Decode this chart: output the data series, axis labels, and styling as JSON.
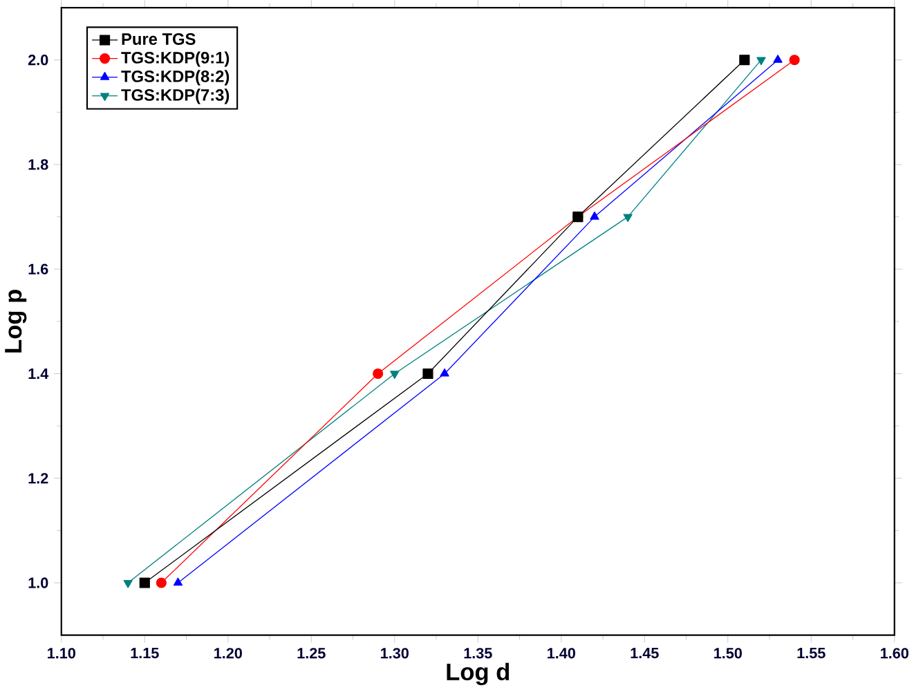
{
  "chart_data": {
    "type": "line",
    "xlabel": "Log d",
    "ylabel": "Log p",
    "xlim": [
      1.1,
      1.6
    ],
    "ylim": [
      0.9,
      2.1
    ],
    "xticks": [
      {
        "value": 1.1,
        "label": "1.10"
      },
      {
        "value": 1.15,
        "label": "1.15"
      },
      {
        "value": 1.2,
        "label": "1.20"
      },
      {
        "value": 1.25,
        "label": "1.25"
      },
      {
        "value": 1.3,
        "label": "1.30"
      },
      {
        "value": 1.35,
        "label": "1.35"
      },
      {
        "value": 1.4,
        "label": "1.40"
      },
      {
        "value": 1.45,
        "label": "1.45"
      },
      {
        "value": 1.5,
        "label": "1.50"
      },
      {
        "value": 1.55,
        "label": "1.55"
      },
      {
        "value": 1.6,
        "label": "1.60"
      }
    ],
    "yticks": [
      {
        "value": 1.0,
        "label": "1.0"
      },
      {
        "value": 1.2,
        "label": "1.2"
      },
      {
        "value": 1.4,
        "label": "1.4"
      },
      {
        "value": 1.6,
        "label": "1.6"
      },
      {
        "value": 1.8,
        "label": "1.8"
      },
      {
        "value": 2.0,
        "label": "2.0"
      }
    ],
    "legend": "top left",
    "grid": false,
    "series": [
      {
        "name": "Pure TGS",
        "color": "#000000",
        "marker": "square",
        "x": [
          1.15,
          1.32,
          1.41,
          1.51
        ],
        "values": [
          1.0,
          1.4,
          1.7,
          2.0
        ]
      },
      {
        "name": "TGS:KDP(9:1)",
        "color": "#ff0000",
        "marker": "circle",
        "x": [
          1.16,
          1.29,
          1.41,
          1.54
        ],
        "values": [
          1.0,
          1.4,
          1.7,
          2.0
        ]
      },
      {
        "name": "TGS:KDP(8:2)",
        "color": "#0000ff",
        "marker": "triangle",
        "x": [
          1.17,
          1.33,
          1.42,
          1.53
        ],
        "values": [
          1.0,
          1.4,
          1.7,
          2.0
        ]
      },
      {
        "name": "TGS:KDP(7:3)",
        "color": "#008080",
        "marker": "triangle down",
        "x": [
          1.14,
          1.3,
          1.44,
          1.52
        ],
        "values": [
          1.0,
          1.4,
          1.7,
          2.0
        ]
      }
    ]
  }
}
